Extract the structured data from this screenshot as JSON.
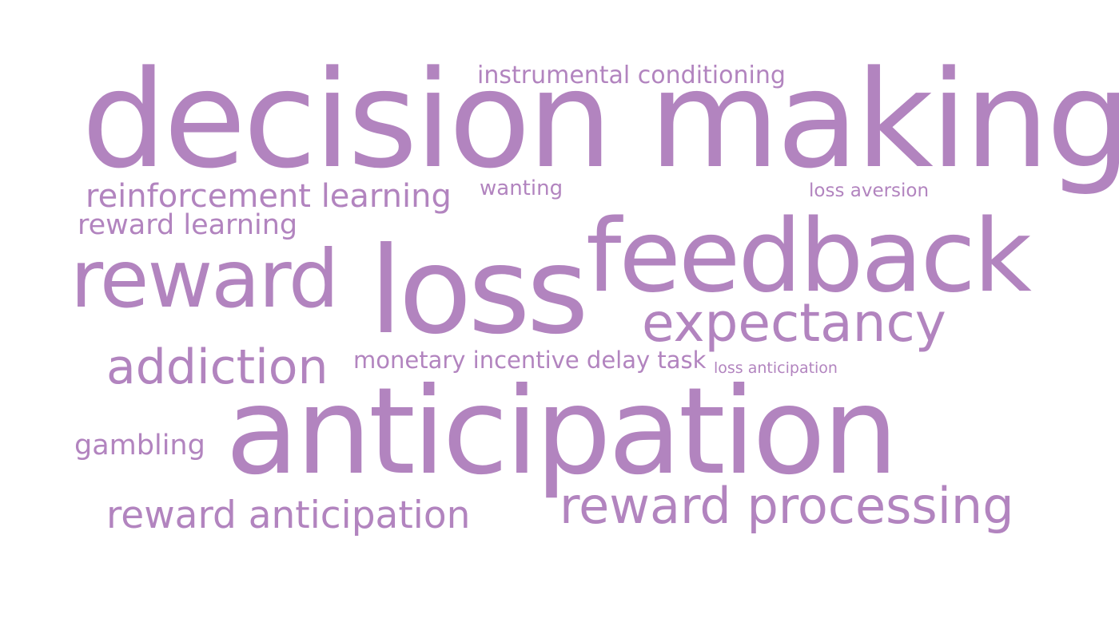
{
  "cloud": {
    "color": "#b284bf",
    "words": {
      "instrumental_conditioning": "instrumental conditioning",
      "decision_making": "decision making",
      "reinforcement_learning": "reinforcement learning",
      "wanting": "wanting",
      "loss_aversion": "loss aversion",
      "reward_learning": "reward learning",
      "feedback": "feedback",
      "reward": "reward",
      "loss": "loss",
      "expectancy": "expectancy",
      "addiction": "addiction",
      "monetary_incentive_delay_task": "monetary incentive delay task",
      "loss_anticipation": "loss anticipation",
      "anticipation": "anticipation",
      "gambling": "gambling",
      "reward_processing": "reward processing",
      "reward_anticipation": "reward anticipation"
    }
  }
}
